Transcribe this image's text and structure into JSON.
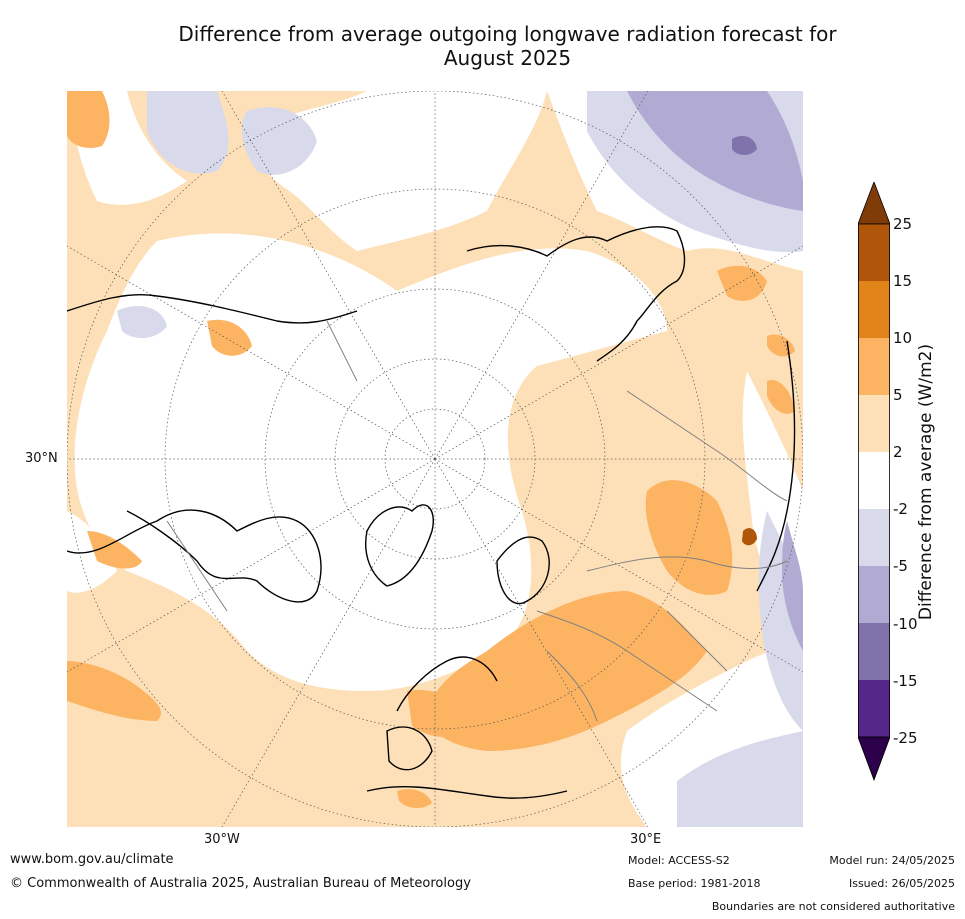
{
  "title_line1": "Difference from average outgoing longwave radiation forecast for",
  "title_line2": "August 2025",
  "map_labels": {
    "lat_30n": "30°N",
    "lon_30w": "30°W",
    "lon_30e": "30°E"
  },
  "colorbar": {
    "label": "Difference from average (W/m2)",
    "ticks": [
      "25",
      "15",
      "10",
      "5",
      "2",
      "-2",
      "-5",
      "-10",
      "-15",
      "-25"
    ],
    "bins": [
      {
        "range": "15 to 25",
        "color": "#b0560b"
      },
      {
        "range": "10 to 15",
        "color": "#e08318"
      },
      {
        "range": "5 to 10",
        "color": "#fcb462"
      },
      {
        "range": "2 to 5",
        "color": "#fde0b8"
      },
      {
        "range": "-2 to 2",
        "color": "#ffffff"
      },
      {
        "range": "-5 to -2",
        "color": "#d8d9ea"
      },
      {
        "range": "-10 to -5",
        "color": "#b1abd3"
      },
      {
        "range": "-15 to -10",
        "color": "#8073ac"
      },
      {
        "range": "-25 to -15",
        "color": "#542789"
      }
    ],
    "over_color": "#7f3b08",
    "under_color": "#2d004b"
  },
  "footer": {
    "website": "www.bom.gov.au/climate",
    "copyright": "© Commonwealth of Australia 2025, Australian Bureau of Meteorology",
    "model": "Model: ACCESS-S2",
    "base_period": "Base period: 1981-2018",
    "model_run": "Model run: 24/05/2025",
    "issued": "Issued: 26/05/2025",
    "disclaimer": "Boundaries are not considered authoritative"
  }
}
